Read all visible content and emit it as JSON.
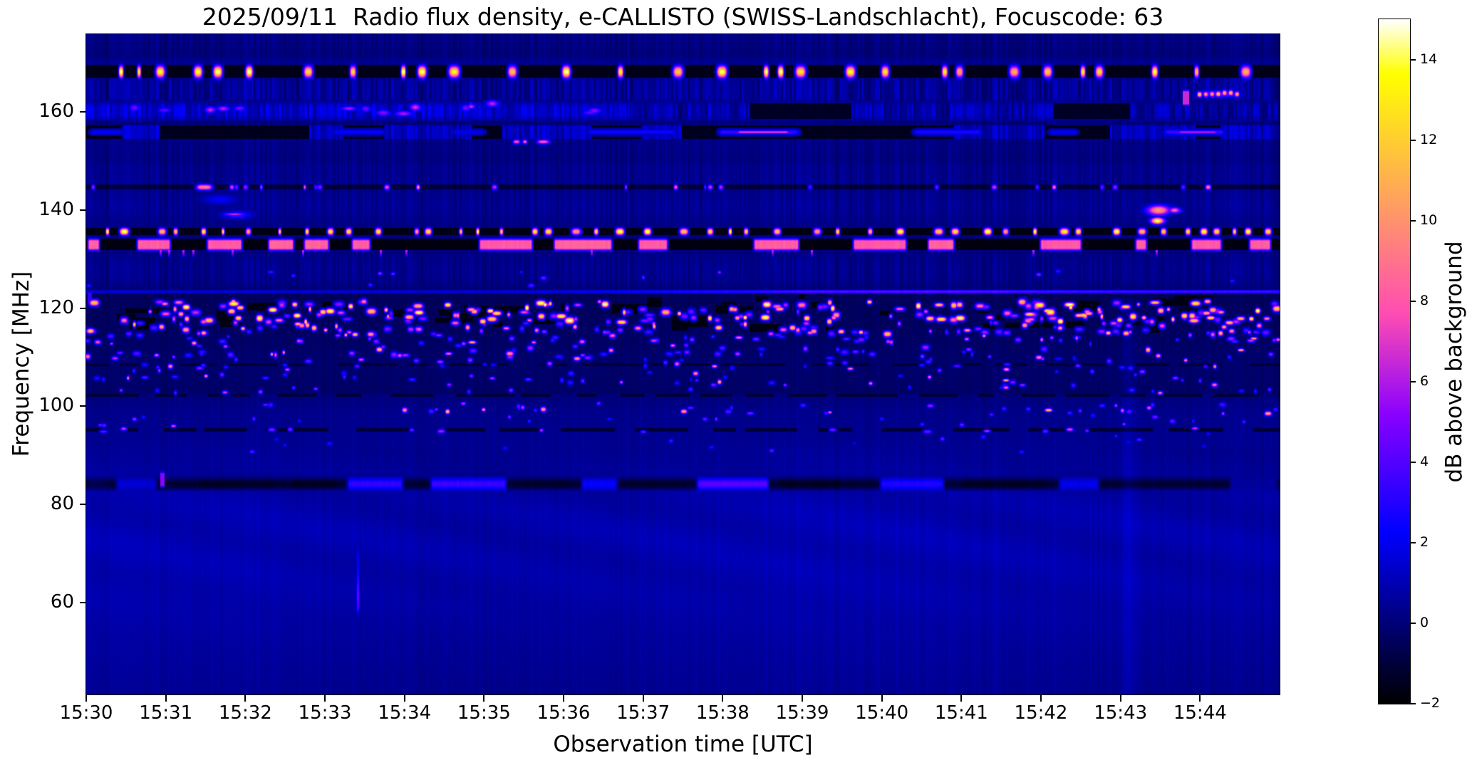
{
  "title": "2025/09/11  Radio flux density, e-CALLISTO (SWISS-Landschlacht), Focuscode: 63",
  "axes": {
    "x": {
      "label": "Observation time [UTC]",
      "ticks": [
        "15:30",
        "15:31",
        "15:32",
        "15:33",
        "15:34",
        "15:35",
        "15:36",
        "15:37",
        "15:38",
        "15:39",
        "15:40",
        "15:41",
        "15:42",
        "15:43",
        "15:44"
      ],
      "minutes_span": 15
    },
    "y": {
      "label": "Frequency [MHz]",
      "ticks": [
        "160",
        "140",
        "120",
        "100",
        "80",
        "60"
      ]
    }
  },
  "colorbar": {
    "label": "dB above background",
    "ticks": [
      "14",
      "12",
      "10",
      "8",
      "6",
      "4",
      "2",
      "0",
      "−2"
    ],
    "range": [
      -2,
      15
    ],
    "colormap": "gnuplot2"
  },
  "chart_data": {
    "type": "heatmap",
    "title": "2025/09/11  Radio flux density, e-CALLISTO (SWISS-Landschlacht), Focuscode: 63",
    "xlabel": "Observation time [UTC]",
    "ylabel": "Frequency [MHz]",
    "time_range_utc": [
      "15:30",
      "15:45"
    ],
    "freq_range_mhz": [
      41.3,
      175.8
    ],
    "value_unit": "dB above background",
    "value_range": [
      -2,
      15
    ],
    "background_profile": [
      [
        175.8,
        0.2
      ],
      [
        173.5,
        0.1
      ],
      [
        171.8,
        0.0
      ],
      [
        170.8,
        0.2
      ],
      [
        170.0,
        0.45
      ],
      [
        169.6,
        0.3
      ],
      [
        166.7,
        0.3
      ],
      [
        166.2,
        0.5
      ],
      [
        164.0,
        0.55
      ],
      [
        162.6,
        0.5
      ],
      [
        162.2,
        0.3
      ],
      [
        158.3,
        0.3
      ],
      [
        157.8,
        0.05
      ],
      [
        157.3,
        0.1
      ],
      [
        156.0,
        0.2
      ],
      [
        154.0,
        0.2
      ],
      [
        152.0,
        0.2
      ],
      [
        150.3,
        0.1
      ],
      [
        149.0,
        0.3
      ],
      [
        147.0,
        0.35
      ],
      [
        144.6,
        0.4
      ],
      [
        143.8,
        0.3
      ],
      [
        142.0,
        0.4
      ],
      [
        140.5,
        0.45
      ],
      [
        139.0,
        0.35
      ],
      [
        137.0,
        0.2
      ],
      [
        135.0,
        0.2
      ],
      [
        133.0,
        0.2
      ],
      [
        131.0,
        0.15
      ],
      [
        129.6,
        0.3
      ],
      [
        128.0,
        0.35
      ],
      [
        126.0,
        0.3
      ],
      [
        124.4,
        0.1
      ],
      [
        123.6,
        -0.2
      ],
      [
        122.8,
        -0.5
      ],
      [
        116.0,
        -0.4
      ],
      [
        109.0,
        -0.2
      ],
      [
        102.9,
        -0.3
      ],
      [
        102.3,
        0.05
      ],
      [
        99.0,
        0.3
      ],
      [
        96.0,
        0.35
      ],
      [
        90.0,
        0.45
      ],
      [
        87.0,
        0.55
      ],
      [
        85.8,
        0.45
      ],
      [
        83.8,
        0.5
      ],
      [
        82.8,
        0.7
      ],
      [
        80.0,
        0.8
      ],
      [
        74.0,
        0.9
      ],
      [
        67.0,
        0.85
      ],
      [
        60.0,
        0.78
      ],
      [
        53.0,
        0.62
      ],
      [
        47.0,
        0.5
      ],
      [
        41.3,
        0.38
      ]
    ],
    "striping_profile": [
      [
        175.8,
        0.4
      ],
      [
        172.0,
        0.3
      ],
      [
        169.8,
        0.1
      ],
      [
        167.0,
        0.3
      ],
      [
        166.5,
        0.8
      ],
      [
        163.0,
        0.9
      ],
      [
        162.0,
        0.5
      ],
      [
        158.4,
        0.45
      ],
      [
        157.5,
        0.2
      ],
      [
        155.0,
        0.25
      ],
      [
        152.0,
        0.3
      ],
      [
        149.0,
        0.35
      ],
      [
        145.5,
        0.45
      ],
      [
        143.5,
        0.3
      ],
      [
        141.0,
        0.45
      ],
      [
        139.0,
        0.3
      ],
      [
        136.0,
        0.1
      ],
      [
        131.0,
        0.15
      ],
      [
        130.0,
        0.3
      ],
      [
        128.5,
        0.45
      ],
      [
        126.5,
        0.4
      ],
      [
        124.5,
        0.25
      ],
      [
        124.3,
        0.15
      ]
    ],
    "bands": [
      {
        "name": "airband-168",
        "type": "dashes",
        "f": [
          166.9,
          169.5
        ],
        "bg": -1.7,
        "dash": {
          "w": [
            5,
            15
          ],
          "gap": [
            10,
            80
          ],
          "v": [
            10.5,
            15.5
          ]
        }
      },
      {
        "name": "mottled-160",
        "type": "mottle",
        "f": [
          158.2,
          162.2
        ],
        "level_left": 1.5,
        "level_right": 0.8,
        "fade_t": [
          6.2,
          7.4
        ],
        "stripe_amp": 1.05,
        "dark_patches": [
          [
            8.35,
            9.62
          ],
          [
            12.15,
            13.12
          ]
        ],
        "blobs": {
          "t": [
            0,
            6.8
          ],
          "n": 16,
          "f": [
            159.0,
            161.8
          ],
          "w": [
            8,
            26
          ],
          "v": [
            4.2,
            7.0
          ]
        }
      },
      {
        "name": "segmented-156",
        "type": "segmented",
        "f": [
          154.4,
          157.2
        ],
        "black": -1.6,
        "texture": 1.15,
        "seg_w": [
          25,
          95
        ],
        "streaks": [
          [
            0.0,
            0.5,
            2.2,
            0
          ],
          [
            3.05,
            3.8,
            2.4,
            0
          ],
          [
            4.55,
            5.05,
            2.0,
            0
          ],
          [
            6.25,
            7.45,
            2.6,
            0
          ],
          [
            7.9,
            9.0,
            3.4,
            7.3
          ],
          [
            10.35,
            11.3,
            2.9,
            0
          ],
          [
            12.05,
            12.5,
            2.1,
            0
          ],
          [
            13.5,
            14.35,
            3.6,
            6.3
          ]
        ]
      },
      {
        "name": "dashline-145",
        "type": "thinline",
        "f": [
          144.2,
          145.2
        ],
        "base": -1.0,
        "dashes": {
          "n": 26,
          "w": [
            3,
            8
          ],
          "v": [
            4,
            10
          ]
        },
        "notable": [
          [
            1.38,
            1.58,
            9.5
          ]
        ]
      },
      {
        "name": "airband-135",
        "type": "dashes",
        "f": [
          134.9,
          136.4
        ],
        "bg": -1.75,
        "dash": {
          "w": [
            4,
            13
          ],
          "gap": [
            7,
            48
          ],
          "v": [
            10,
            15.5
          ]
        }
      },
      {
        "name": "pink-133",
        "type": "pinkseg",
        "f": [
          131.9,
          134.2
        ],
        "bg": -1.8,
        "v": 8.3,
        "segments": [
          [
            0.0,
            0.18
          ],
          [
            0.62,
            1.07
          ],
          [
            1.5,
            1.97
          ],
          [
            2.27,
            2.62
          ],
          [
            2.72,
            3.06
          ],
          [
            3.32,
            3.58
          ],
          [
            4.92,
            5.62
          ],
          [
            5.86,
            6.62
          ],
          [
            6.92,
            7.32
          ],
          [
            8.37,
            8.97
          ],
          [
            9.62,
            10.32
          ],
          [
            10.56,
            10.92
          ],
          [
            11.97,
            12.52
          ],
          [
            13.17,
            13.34
          ],
          [
            13.87,
            14.28
          ],
          [
            14.6,
            14.9
          ]
        ]
      },
      {
        "name": "blue-line-123",
        "type": "hline",
        "f": 123.35,
        "v0": 1.8,
        "v1": 4.1,
        "ramp": [
          4.5,
          10.5
        ],
        "warm": {
          "t": [
            8.2,
            12.3
          ],
          "add": 0.7
        }
      },
      {
        "name": "speckle-zone",
        "type": "speckles",
        "f": [
          90,
          124.2
        ],
        "black_lane": {
          "f": [
            115.6,
            122.2
          ],
          "n": 46,
          "w": [
            8,
            60
          ],
          "h": [
            6,
            16
          ]
        },
        "dark_lanes": [
          [
            101.9,
            102.5
          ],
          [
            94.9,
            95.5
          ],
          [
            108.2,
            108.75
          ]
        ],
        "rows": [
          {
            "f": [
              117.2,
              121.5
            ],
            "n": 200,
            "v": [
              5,
              15.5
            ],
            "w": [
              4,
              14
            ],
            "h": [
              5,
              9
            ],
            "hot": 0.45
          },
          {
            "f": [
              114.6,
              117.2
            ],
            "n": 110,
            "v": [
              4,
              13
            ],
            "w": [
              4,
              12
            ],
            "h": [
              5,
              8
            ],
            "hot": 0.3
          },
          {
            "f": [
              112.3,
              114.6
            ],
            "n": 62,
            "v": [
              3.5,
              11.5
            ],
            "w": [
              4,
              11
            ],
            "h": [
              4,
              7
            ],
            "hot": 0.2
          },
          {
            "f": [
              109.9,
              112.3
            ],
            "n": 60,
            "v": [
              3.5,
              12
            ],
            "w": [
              4,
              12
            ],
            "h": [
              4,
              8
            ],
            "hot": 0.25
          },
          {
            "f": [
              107.4,
              109.9
            ],
            "n": 48,
            "v": [
              3,
              10
            ],
            "w": [
              4,
              11
            ],
            "h": [
              4,
              7
            ],
            "hot": 0.18
          },
          {
            "f": [
              104.9,
              107.4
            ],
            "n": 40,
            "v": [
              3,
              11
            ],
            "w": [
              4,
              10
            ],
            "h": [
              4,
              7
            ],
            "hot": 0.18
          },
          {
            "f": [
              102.7,
              104.9
            ],
            "n": 30,
            "v": [
              3,
              9
            ],
            "w": [
              4,
              10
            ],
            "h": [
              4,
              7
            ],
            "hot": 0.12
          },
          {
            "f": [
              98.4,
              101.0
            ],
            "n": 38,
            "v": [
              4,
              12
            ],
            "w": [
              4,
              11
            ],
            "h": [
              4,
              7
            ],
            "hot": 0.22
          },
          {
            "f": [
              96.0,
              98.4
            ],
            "n": 22,
            "v": [
              3,
              9
            ],
            "w": [
              4,
              9
            ],
            "h": [
              4,
              6
            ],
            "hot": 0.1
          },
          {
            "f": [
              94.8,
              95.7
            ],
            "n": 16,
            "v": [
              5,
              9
            ],
            "w": [
              5,
              12
            ],
            "h": [
              4,
              6
            ],
            "hot": 0.1
          },
          {
            "f": [
              90.5,
              94.5
            ],
            "n": 18,
            "v": [
              2.5,
              7
            ],
            "w": [
              4,
              9
            ],
            "h": [
              4,
              6
            ],
            "hot": 0.05
          },
          {
            "f": [
              124.6,
              127.6
            ],
            "n": 14,
            "v": [
              3.5,
              8.5
            ],
            "w": [
              4,
              10
            ],
            "h": [
              4,
              6
            ],
            "hot": 0.1
          }
        ]
      },
      {
        "name": "band-85",
        "type": "segments",
        "f": [
          83.2,
          85.3
        ],
        "bg": -1.25,
        "segments": [
          [
            0.0,
            0.3,
            -0.8
          ],
          [
            0.35,
            0.9,
            1.6
          ],
          [
            1.4,
            2.4,
            -1.5
          ],
          [
            2.55,
            3.15,
            -1.6
          ],
          [
            3.25,
            4.0,
            3.4
          ],
          [
            4.3,
            5.3,
            3.6
          ],
          [
            5.45,
            6.1,
            -1.4
          ],
          [
            6.2,
            6.7,
            2.4
          ],
          [
            6.8,
            7.55,
            -1.4
          ],
          [
            7.65,
            8.6,
            4.2
          ],
          [
            8.7,
            9.5,
            -1.6
          ],
          [
            9.95,
            10.8,
            3.0
          ],
          [
            11.0,
            12.05,
            -1.5
          ],
          [
            12.2,
            12.75,
            2.0
          ],
          [
            12.85,
            14.3,
            -1.2
          ],
          [
            14.35,
            15.0,
            0.6
          ]
        ]
      }
    ],
    "events": [
      {
        "name": "orange-streak-164",
        "type": "dash_cluster",
        "t": [
          13.95,
          14.5
        ],
        "f": [
          163.0,
          164.4
        ],
        "v": [
          9,
          13.5
        ],
        "n": 7
      },
      {
        "name": "magenta-tick-164",
        "type": "vdash",
        "t": [
          13.78,
          13.86
        ],
        "f": [
          161.2,
          164.6
        ],
        "v": 6.5
      },
      {
        "name": "pink-dashes-154",
        "type": "hdashes",
        "f": [
          153.5,
          154.4
        ],
        "v": 8.2,
        "list": [
          [
            5.36,
            5.45
          ],
          [
            5.48,
            5.54
          ],
          [
            5.66,
            5.82
          ]
        ]
      },
      {
        "name": "blue-patch-142",
        "type": "blob",
        "t": [
          1.45,
          1.9
        ],
        "f": [
          141.2,
          143.2
        ],
        "v": 2.3
      },
      {
        "name": "streak-139",
        "type": "blob",
        "t": [
          1.7,
          2.08
        ],
        "f": [
          138.3,
          139.9
        ],
        "v": 3.6
      },
      {
        "name": "streak-139-core",
        "type": "blob",
        "t": [
          1.72,
          2.0
        ],
        "f": [
          138.9,
          139.5
        ],
        "v": 7.0
      },
      {
        "name": "patch-1543-orange",
        "type": "blob",
        "t": [
          13.33,
          13.62
        ],
        "f": [
          139.0,
          141.0
        ],
        "v": 10.5
      },
      {
        "name": "patch-1543-white",
        "type": "blob",
        "t": [
          13.38,
          13.54
        ],
        "f": [
          137.2,
          138.5
        ],
        "v": 14.7
      },
      {
        "name": "patch-1543-pink",
        "type": "blob",
        "t": [
          13.6,
          13.75
        ],
        "f": [
          139.4,
          140.6
        ],
        "v": 8.5
      },
      {
        "name": "vert-streak-1533",
        "type": "vstreak",
        "t": 3.41,
        "f": [
          57.0,
          71.5
        ],
        "v": 2.3,
        "core_f": [
          59.0,
          64.0
        ],
        "core_v": 4.7,
        "sigma": 2.3
      },
      {
        "name": "bright-column-1543",
        "type": "vcolumn",
        "t": 13.1,
        "f_max": 122,
        "add": 0.5,
        "sigma": 7
      },
      {
        "name": "pink-tick-86",
        "type": "vdash",
        "t": [
          0.93,
          0.98
        ],
        "f": [
          83.5,
          86.8
        ],
        "v": 5.2
      },
      {
        "name": "blue-tick-left-122",
        "type": "vdash",
        "t": [
          0.02,
          0.07
        ],
        "f": [
          120.8,
          123.6
        ],
        "v": 3.3
      },
      {
        "name": "white-dash-left-115",
        "type": "blob",
        "t": [
          0.0,
          0.1
        ],
        "f": [
          114.9,
          115.9
        ],
        "v": 13.0
      },
      {
        "name": "hanging-ticks-131",
        "type": "vdashes",
        "f": [
          130.5,
          131.8
        ],
        "v": 6.2,
        "list": [
          0.93,
          1.04,
          1.22,
          1.34,
          1.84,
          2.72,
          3.7,
          4.02,
          6.35,
          8.62,
          9.12,
          11.9,
          13.45
        ]
      }
    ]
  }
}
